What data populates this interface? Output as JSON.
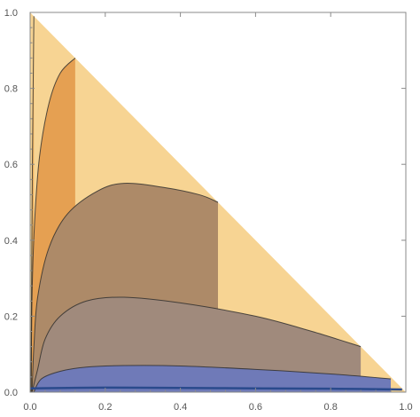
{
  "chart_data": {
    "type": "contour",
    "title": "",
    "xlabel": "",
    "ylabel": "",
    "xlim": [
      0,
      1
    ],
    "ylim": [
      0,
      1
    ],
    "x_ticks": [
      "0.0",
      "0.2",
      "0.4",
      "0.6",
      "0.8",
      "1.0"
    ],
    "y_ticks": [
      "0.0",
      "0.2",
      "0.4",
      "0.6",
      "0.8",
      "1.0"
    ],
    "domain": "triangle x >= 0, y >= 0, x + y <= 1",
    "grid": false,
    "legend": "none",
    "bands": [
      {
        "color": "#6f7ab8",
        "level": 1
      },
      {
        "color": "#a08a7c",
        "level": 2
      },
      {
        "color": "#ad8a68",
        "level": 3
      },
      {
        "color": "#e5a052",
        "level": 4
      },
      {
        "color": "#ebae5c",
        "level": 5
      },
      {
        "color": "#f2bd6e",
        "level": 6
      },
      {
        "color": "#f7d493",
        "level": 7
      }
    ],
    "contours": [
      {
        "level": 1,
        "points": [
          [
            0.01,
            0.0
          ],
          [
            0.03,
            0.035
          ],
          [
            0.08,
            0.055
          ],
          [
            0.15,
            0.066
          ],
          [
            0.25,
            0.07
          ],
          [
            0.4,
            0.069
          ],
          [
            0.6,
            0.06
          ],
          [
            0.8,
            0.048
          ],
          [
            0.96,
            0.035
          ]
        ]
      },
      {
        "level": 2,
        "points": [
          [
            0.005,
            0.0
          ],
          [
            0.02,
            0.06
          ],
          [
            0.04,
            0.14
          ],
          [
            0.08,
            0.2
          ],
          [
            0.15,
            0.24
          ],
          [
            0.25,
            0.25
          ],
          [
            0.4,
            0.235
          ],
          [
            0.6,
            0.2
          ],
          [
            0.75,
            0.16
          ],
          [
            0.88,
            0.12
          ]
        ]
      },
      {
        "level": 3,
        "points": [
          [
            0.005,
            0.0
          ],
          [
            0.01,
            0.12
          ],
          [
            0.02,
            0.25
          ],
          [
            0.05,
            0.38
          ],
          [
            0.1,
            0.47
          ],
          [
            0.18,
            0.53
          ],
          [
            0.25,
            0.55
          ],
          [
            0.35,
            0.54
          ],
          [
            0.45,
            0.52
          ],
          [
            0.5,
            0.5
          ]
        ]
      },
      {
        "level": 4,
        "points": [
          [
            0.003,
            0.0
          ],
          [
            0.005,
            0.25
          ],
          [
            0.012,
            0.45
          ],
          [
            0.025,
            0.62
          ],
          [
            0.05,
            0.76
          ],
          [
            0.08,
            0.84
          ],
          [
            0.12,
            0.88
          ]
        ]
      },
      {
        "level": 5,
        "points": [
          [
            0.002,
            0.0
          ],
          [
            0.004,
            0.3
          ],
          [
            0.006,
            0.6
          ],
          [
            0.008,
            0.8
          ],
          [
            0.01,
            0.99
          ]
        ]
      }
    ],
    "baseline_series": {
      "color": "#2a4a8c",
      "points": [
        [
          0.0,
          0.01
        ],
        [
          0.2,
          0.012
        ],
        [
          0.4,
          0.011
        ],
        [
          0.6,
          0.01
        ],
        [
          0.8,
          0.009
        ],
        [
          0.99,
          0.007
        ]
      ]
    }
  }
}
